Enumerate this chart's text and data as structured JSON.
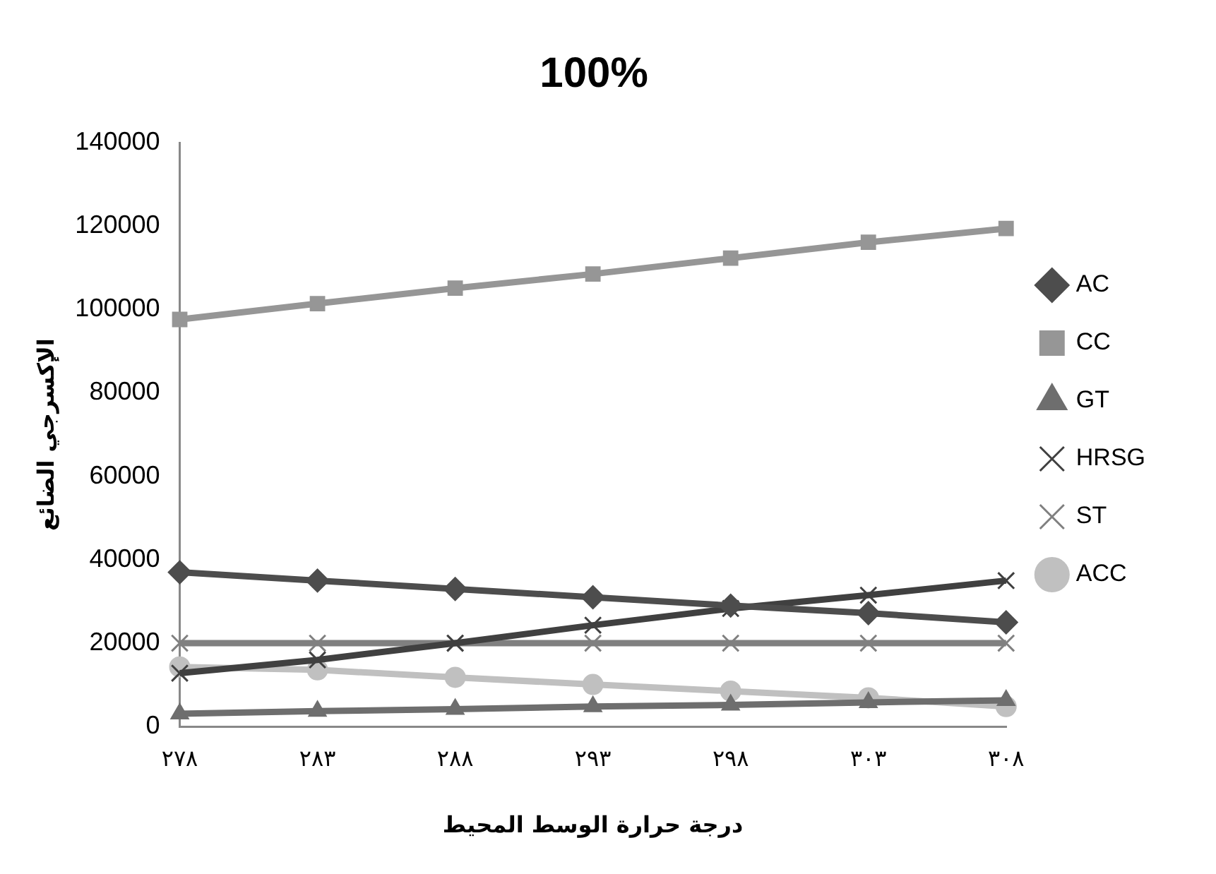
{
  "chart_data": {
    "type": "line",
    "title": "100%",
    "xlabel": "درجة حرارة الوسط المحيط",
    "ylabel": "الإكسرجي الضائع",
    "categories": [
      "٢٧٨",
      "٢٨٣",
      "٢٨٨",
      "٢٩٣",
      "٢٩٨",
      "٣٠٣",
      "٣٠٨"
    ],
    "series": [
      {
        "name": "AC",
        "color": "#4d4d4d",
        "marker": "diamond",
        "values": [
          37000,
          35000,
          33000,
          31000,
          29000,
          27200,
          25000
        ]
      },
      {
        "name": "CC",
        "color": "#969696",
        "marker": "square",
        "values": [
          97600,
          101400,
          105100,
          108500,
          112300,
          116100,
          119400
        ]
      },
      {
        "name": "GT",
        "color": "#6e6e6e",
        "marker": "triangle",
        "values": [
          3100,
          3700,
          4200,
          4800,
          5200,
          5800,
          6300
        ]
      },
      {
        "name": "HRSG",
        "color": "#404040",
        "marker": "cross",
        "values": [
          12800,
          16000,
          20000,
          24300,
          28300,
          31500,
          35000
        ]
      },
      {
        "name": "ST",
        "color": "#808080",
        "marker": "cross",
        "values": [
          20000,
          20000,
          20000,
          20000,
          20000,
          20000,
          20000
        ]
      },
      {
        "name": "ACC",
        "color": "#c0c0c0",
        "marker": "circle",
        "values": [
          14300,
          13600,
          11800,
          10100,
          8500,
          6900,
          4800
        ]
      }
    ],
    "ylim": [
      0,
      140000
    ],
    "yticks": [
      0,
      20000,
      40000,
      60000,
      80000,
      100000,
      120000,
      140000
    ],
    "grid": false,
    "legend": "right",
    "line_style": "solid"
  }
}
